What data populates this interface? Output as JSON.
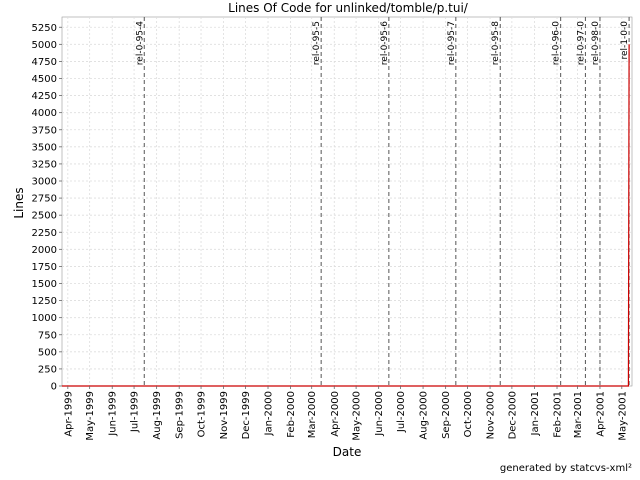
{
  "chart_data": {
    "type": "line",
    "title": "Lines Of Code for unlinked/tomble/p.tui/",
    "xlabel": "Date",
    "ylabel": "Lines",
    "ylim": [
      0,
      5400
    ],
    "yticks": [
      0,
      250,
      500,
      750,
      1000,
      1250,
      1500,
      1750,
      2000,
      2250,
      2500,
      2750,
      3000,
      3250,
      3500,
      3750,
      4000,
      4250,
      4500,
      4750,
      5000,
      5250
    ],
    "xlim": [
      "1999-03-24",
      "2001-05-15"
    ],
    "xtick_labels": [
      "Apr-1999",
      "May-1999",
      "Jun-1999",
      "Jul-1999",
      "Aug-1999",
      "Sep-1999",
      "Oct-1999",
      "Nov-1999",
      "Dec-1999",
      "Jan-2000",
      "Feb-2000",
      "Mar-2000",
      "Apr-2000",
      "May-2000",
      "Jun-2000",
      "Jul-2000",
      "Aug-2000",
      "Sep-2000",
      "Oct-2000",
      "Nov-2000",
      "Dec-2000",
      "Jan-2001",
      "Feb-2001",
      "Mar-2001",
      "Apr-2001",
      "May-2001"
    ],
    "xtick_dates": [
      "1999-04-01",
      "1999-05-01",
      "1999-06-01",
      "1999-07-01",
      "1999-08-01",
      "1999-09-01",
      "1999-10-01",
      "1999-11-01",
      "1999-12-01",
      "2000-01-01",
      "2000-02-01",
      "2000-03-01",
      "2000-04-01",
      "2000-05-01",
      "2000-06-01",
      "2000-07-01",
      "2000-08-01",
      "2000-09-01",
      "2000-10-01",
      "2000-11-01",
      "2000-12-01",
      "2001-01-01",
      "2001-02-01",
      "2001-03-01",
      "2001-04-01",
      "2001-05-01"
    ],
    "grid": true,
    "series": [
      {
        "color": "#cc0000",
        "x": [
          "1999-03-24",
          "2001-05-10",
          "2001-05-11"
        ],
        "y": [
          0,
          0,
          5000
        ]
      }
    ],
    "markers": [
      {
        "label": "rel-0-95-4",
        "date": "1999-07-15"
      },
      {
        "label": "rel-0-95-5",
        "date": "2000-03-14"
      },
      {
        "label": "rel-0-95-6",
        "date": "2000-06-15"
      },
      {
        "label": "rel-0-95-7",
        "date": "2000-09-15"
      },
      {
        "label": "rel-0-95-8",
        "date": "2000-11-15"
      },
      {
        "label": "rel-0-96-0",
        "date": "2001-02-06"
      },
      {
        "label": "rel-0-97-0",
        "date": "2001-03-12"
      },
      {
        "label": "rel-0-98-0",
        "date": "2001-04-01"
      },
      {
        "label": "rel-1-0-0",
        "date": "2001-05-11"
      }
    ]
  },
  "footer": {
    "text": "generated by statcvs-xml²"
  }
}
